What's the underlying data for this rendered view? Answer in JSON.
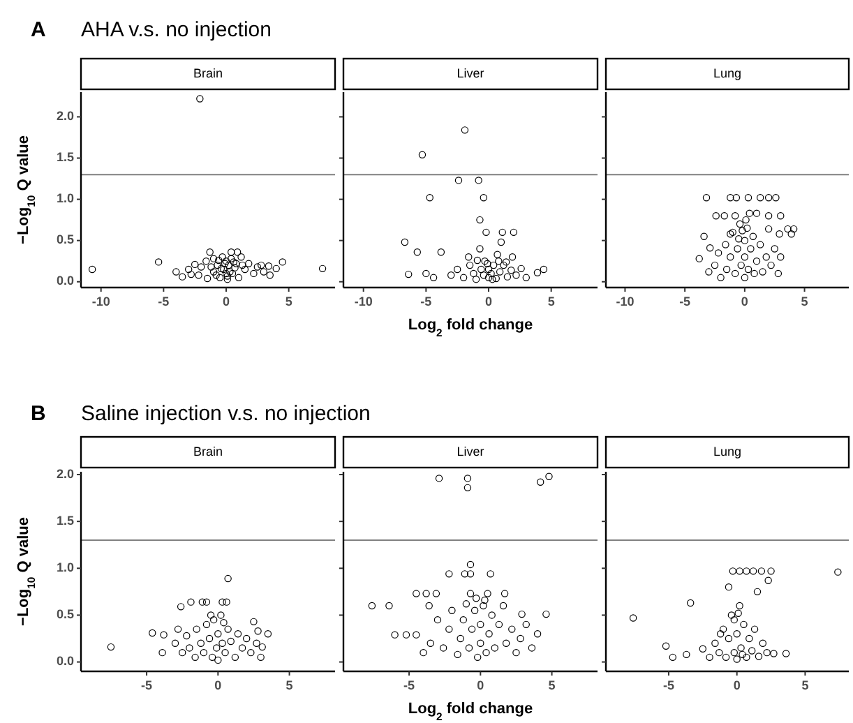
{
  "chart_data": [
    {
      "type": "scatter",
      "title": "Brain",
      "annotations": [
        "A",
        "AHA v.s. no injection"
      ],
      "ylabel": "−Log$_{10}$ Q value",
      "marker": "circle",
      "xlim": [
        -11.6,
        8.7
      ],
      "xticks": [
        -10,
        -5,
        0,
        5
      ],
      "ylim": [
        -0.07,
        2.3
      ],
      "yticks": [
        {
          "value": 0,
          "label": "0.0"
        },
        {
          "value": 0.5,
          "label": "0.5"
        },
        {
          "value": 1,
          "label": "1.0"
        },
        {
          "value": 1.5,
          "label": "1.5"
        },
        {
          "value": 2,
          "label": "2.0"
        }
      ],
      "ref_lines": [
        {
          "axis": "y",
          "value": 1.3,
          "color": "#808080"
        }
      ],
      "series": [
        {
          "color": "#000000",
          "x": [
            -2.1,
            -10.7,
            7.7,
            -5.4,
            -1.3,
            0.4,
            0.9,
            4.5,
            3.4,
            -4,
            -3.5,
            -3,
            -2.5,
            -2.2,
            -2,
            -1.6,
            -1.5,
            -1,
            -1,
            -0.7,
            -0.5,
            -0.3,
            -0.2,
            0,
            0,
            0.1,
            0.2,
            0.4,
            0.5,
            0.8,
            1,
            1.2,
            1.5,
            1.8,
            2.2,
            2.5,
            3,
            3.5,
            4,
            -0.8,
            -0.4,
            0.3,
            0.7,
            -0.1,
            0.1,
            -1.2,
            1.3,
            -0.6,
            0.6,
            2.8,
            -2.8
          ],
          "values": [
            2.22,
            0.15,
            0.16,
            0.24,
            0.36,
            0.36,
            0.36,
            0.24,
            0.19,
            0.12,
            0.06,
            0.15,
            0.21,
            0.08,
            0.18,
            0.25,
            0.04,
            0.28,
            0.12,
            0.2,
            0.05,
            0.3,
            0.15,
            0.1,
            0.25,
            0.03,
            0.2,
            0.28,
            0.1,
            0.22,
            0.05,
            0.3,
            0.15,
            0.22,
            0.1,
            0.18,
            0.12,
            0.08,
            0.16,
            0.08,
            0.16,
            0.12,
            0.17,
            0.22,
            0.07,
            0.18,
            0.2,
            0.26,
            0.24,
            0.2,
            0.09
          ]
        }
      ]
    },
    {
      "type": "scatter",
      "title": "Liver",
      "xlabel": "Log$_{2}$ fold change",
      "tick_labels": "x",
      "marker": "circle",
      "xlim": [
        -11.6,
        8.7
      ],
      "xticks": [
        -10,
        -5,
        0,
        5
      ],
      "ylim": [
        -0.07,
        2.3
      ],
      "yticks": [
        0,
        0.5,
        1,
        1.5,
        2
      ],
      "ref_lines": [
        {
          "axis": "y",
          "value": 1.3,
          "color": "#808080"
        }
      ],
      "series": [
        {
          "color": "#000000",
          "x": [
            -1.9,
            -5.3,
            -2.4,
            -0.8,
            -4.7,
            -0.4,
            -0.7,
            -0.2,
            1.1,
            2,
            -6.7,
            -5.7,
            -3.8,
            -0.7,
            1,
            -1.6,
            0.7,
            1.9,
            -6.4,
            -5,
            -4.4,
            3.9,
            4.4,
            -3,
            -2.5,
            -2,
            -1.5,
            -1.2,
            -1,
            -0.6,
            -0.3,
            0,
            0,
            0.2,
            0.4,
            0.6,
            0.9,
            1.2,
            1.5,
            1.8,
            2.2,
            2.6,
            3,
            -0.4,
            0.3,
            -0.1,
            0.8,
            -0.9,
            1.4
          ],
          "values": [
            1.84,
            1.54,
            1.23,
            1.23,
            1.02,
            1.02,
            0.75,
            0.6,
            0.6,
            0.6,
            0.48,
            0.36,
            0.36,
            0.4,
            0.48,
            0.3,
            0.33,
            0.3,
            0.09,
            0.1,
            0.05,
            0.11,
            0.15,
            0.08,
            0.15,
            0.05,
            0.2,
            0.1,
            0.03,
            0.15,
            0.25,
            0.05,
            0.15,
            0.1,
            0.2,
            0.04,
            0.12,
            0.2,
            0.06,
            0.14,
            0.08,
            0.16,
            0.05,
            0.08,
            0.03,
            0.22,
            0.25,
            0.26,
            0.24
          ]
        }
      ]
    },
    {
      "type": "scatter",
      "title": "Lung",
      "tick_labels": "x",
      "marker": "circle",
      "xlim": [
        -11.6,
        8.7
      ],
      "xticks": [
        -10,
        -5,
        0,
        5
      ],
      "ylim": [
        -0.07,
        2.3
      ],
      "yticks": [
        0,
        0.5,
        1,
        1.5,
        2
      ],
      "ref_lines": [
        {
          "axis": "y",
          "value": 1.3,
          "color": "#808080"
        }
      ],
      "series": [
        {
          "color": "#000000",
          "x": [
            -3.2,
            -1.2,
            -0.7,
            0.3,
            1.3,
            2,
            2.6,
            0.4,
            1,
            -2.4,
            -1.7,
            -0.8,
            2,
            3,
            3.6,
            4.1,
            2,
            -1.2,
            2.9,
            3.9,
            -3.4,
            -2.9,
            -3.8,
            -3,
            -2.5,
            -2.2,
            -2,
            -1.6,
            -1.5,
            -1.2,
            -1,
            -0.8,
            -0.6,
            -0.4,
            -0.3,
            0,
            0,
            0,
            0.2,
            0.3,
            0.5,
            0.7,
            0.8,
            1,
            1.3,
            1.5,
            1.8,
            2.2,
            2.5,
            2.8,
            3,
            -0.2,
            0.1,
            -0.5
          ],
          "values": [
            1.02,
            1.02,
            1.02,
            1.02,
            1.02,
            1.02,
            1.02,
            0.83,
            0.83,
            0.8,
            0.8,
            0.8,
            0.8,
            0.8,
            0.64,
            0.64,
            0.64,
            0.58,
            0.58,
            0.58,
            0.55,
            0.41,
            0.28,
            0.12,
            0.2,
            0.35,
            0.05,
            0.45,
            0.15,
            0.3,
            0.6,
            0.1,
            0.4,
            0.7,
            0.2,
            0.05,
            0.3,
            0.5,
            0.65,
            0.15,
            0.4,
            0.55,
            0.1,
            0.25,
            0.45,
            0.12,
            0.3,
            0.2,
            0.4,
            0.1,
            0.3,
            0.62,
            0.75,
            0.52
          ]
        }
      ]
    },
    {
      "type": "scatter",
      "title": "Brain",
      "annotations": [
        "B",
        "Saline injection v.s. no injection"
      ],
      "ylabel": "−Log$_{10}$ Q value",
      "marker": "circle",
      "xlim": [
        -9.6,
        8.2
      ],
      "xticks": [
        -5,
        0,
        5
      ],
      "ylim": [
        -0.1,
        2.03
      ],
      "yticks": [
        {
          "value": 0,
          "label": "0.0"
        },
        {
          "value": 0.5,
          "label": "0.5"
        },
        {
          "value": 1,
          "label": "1.0"
        },
        {
          "value": 1.5,
          "label": "1.5"
        },
        {
          "value": 2,
          "label": "2.0"
        }
      ],
      "ref_lines": [
        {
          "axis": "y",
          "value": 1.3,
          "color": "#808080"
        }
      ],
      "series": [
        {
          "color": "#000000",
          "x": [
            -7.5,
            0.7,
            -2.6,
            -1.9,
            -1.1,
            -0.8,
            0.3,
            0.6,
            2.5,
            -4.6,
            -3.8,
            3.5,
            3.1,
            -3.9,
            -3,
            -2.5,
            -2.2,
            -2,
            -1.6,
            -1.5,
            -1.2,
            -1,
            -0.8,
            -0.6,
            -0.4,
            -0.3,
            -0.1,
            0,
            0,
            0.2,
            0.3,
            0.5,
            0.7,
            0.9,
            1.2,
            1.4,
            1.7,
            2,
            2.3,
            2.7,
            3,
            -0.5,
            0.4,
            -2.8,
            2.8
          ],
          "values": [
            0.16,
            0.89,
            0.59,
            0.64,
            0.64,
            0.64,
            0.64,
            0.64,
            0.43,
            0.31,
            0.29,
            0.3,
            0.16,
            0.1,
            0.2,
            0.1,
            0.28,
            0.15,
            0.05,
            0.35,
            0.2,
            0.1,
            0.4,
            0.25,
            0.05,
            0.45,
            0.15,
            0.3,
            0.02,
            0.5,
            0.2,
            0.1,
            0.35,
            0.22,
            0.05,
            0.3,
            0.15,
            0.25,
            0.1,
            0.2,
            0.05,
            0.5,
            0.42,
            0.35,
            0.33
          ]
        }
      ]
    },
    {
      "type": "scatter",
      "title": "Liver",
      "xlabel": "Log$_{2}$ fold change",
      "tick_labels": "x",
      "marker": "circle",
      "xlim": [
        -9.6,
        8.2
      ],
      "xticks": [
        -5,
        0,
        5
      ],
      "ylim": [
        -0.1,
        2.03
      ],
      "yticks": [
        0,
        0.5,
        1,
        1.5,
        2
      ],
      "ref_lines": [
        {
          "axis": "y",
          "value": 1.3,
          "color": "#808080"
        }
      ],
      "series": [
        {
          "color": "#000000",
          "x": [
            -2.9,
            -0.9,
            -0.9,
            4.2,
            4.8,
            -0.7,
            -2.2,
            -1.1,
            -0.7,
            0.7,
            -4.5,
            -3.8,
            -3.1,
            -0.7,
            0.5,
            1.7,
            -7.6,
            -6.4,
            -3.6,
            2.9,
            4.6,
            -6,
            -5.2,
            -4.5,
            -4,
            -3.5,
            -3,
            -2.6,
            -2.2,
            -2,
            -1.6,
            -1.4,
            -1.2,
            -1,
            -0.8,
            -0.6,
            -0.4,
            -0.2,
            0,
            0,
            0.2,
            0.4,
            0.6,
            0.8,
            1,
            1.3,
            1.6,
            1.8,
            2.2,
            2.5,
            2.8,
            3.2,
            3.6,
            4,
            -0.3,
            0.3
          ],
          "values": [
            1.96,
            1.96,
            1.86,
            1.92,
            1.98,
            1.04,
            0.94,
            0.94,
            0.94,
            0.94,
            0.73,
            0.73,
            0.73,
            0.73,
            0.73,
            0.73,
            0.6,
            0.6,
            0.6,
            0.51,
            0.51,
            0.29,
            0.29,
            0.29,
            0.1,
            0.2,
            0.45,
            0.15,
            0.35,
            0.55,
            0.08,
            0.25,
            0.45,
            0.62,
            0.15,
            0.35,
            0.55,
            0.05,
            0.2,
            0.4,
            0.6,
            0.1,
            0.3,
            0.5,
            0.15,
            0.4,
            0.6,
            0.2,
            0.35,
            0.1,
            0.25,
            0.4,
            0.15,
            0.3,
            0.68,
            0.66
          ]
        }
      ]
    },
    {
      "type": "scatter",
      "title": "Lung",
      "tick_labels": "x",
      "marker": "circle",
      "xlim": [
        -9.6,
        8.2
      ],
      "xticks": [
        -5,
        0,
        5
      ],
      "ylim": [
        -0.1,
        2.03
      ],
      "yticks": [
        0,
        0.5,
        1,
        1.5,
        2
      ],
      "ref_lines": [
        {
          "axis": "y",
          "value": 1.3,
          "color": "#808080"
        }
      ],
      "series": [
        {
          "color": "#000000",
          "x": [
            -7.6,
            -0.3,
            0.2,
            0.7,
            1.2,
            1.8,
            2.5,
            2.3,
            7.4,
            -0.6,
            1.5,
            -3.4,
            -5.2,
            -4.7,
            -3.7,
            -2.5,
            3.6,
            2.7,
            -2,
            -1.6,
            -1.3,
            -1,
            -0.8,
            -0.6,
            -0.4,
            -0.2,
            0,
            0,
            0.2,
            0.3,
            0.5,
            0.7,
            0.9,
            1.1,
            1.3,
            1.6,
            1.9,
            2.2,
            -0.2,
            0.1,
            0.4,
            -1.2
          ],
          "values": [
            0.47,
            0.97,
            0.97,
            0.97,
            0.97,
            0.97,
            0.97,
            0.87,
            0.96,
            0.8,
            0.75,
            0.63,
            0.17,
            0.05,
            0.08,
            0.14,
            0.09,
            0.09,
            0.05,
            0.2,
            0.1,
            0.35,
            0.05,
            0.25,
            0.5,
            0.1,
            0.03,
            0.3,
            0.6,
            0.15,
            0.4,
            0.05,
            0.25,
            0.12,
            0.35,
            0.06,
            0.2,
            0.1,
            0.45,
            0.52,
            0.08,
            0.3
          ]
        }
      ]
    }
  ]
}
